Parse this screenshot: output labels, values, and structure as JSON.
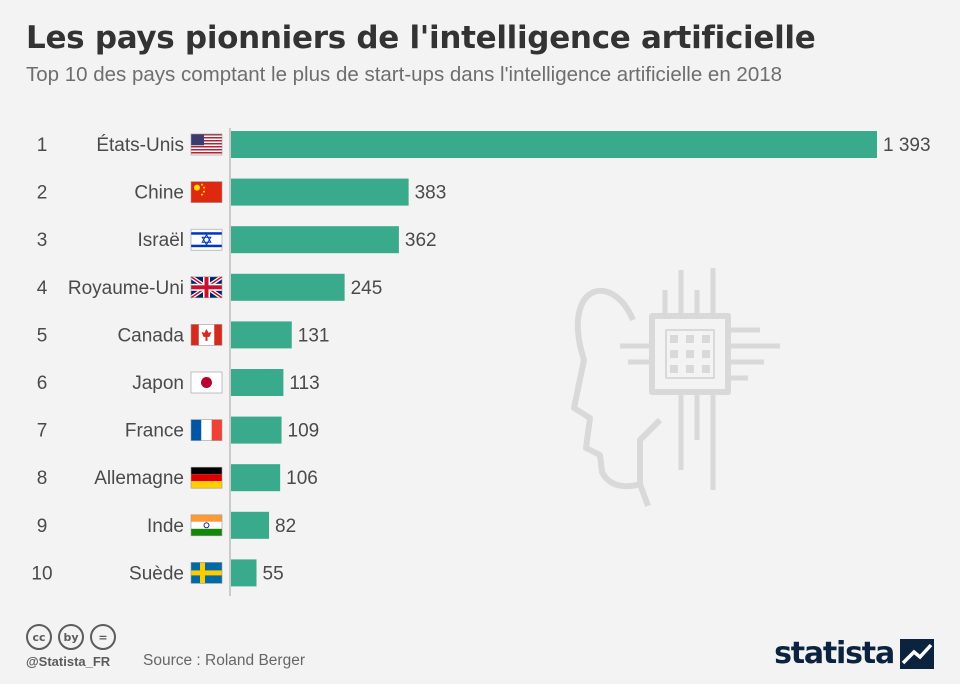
{
  "title": "Les pays pionniers de l'intelligence artificielle",
  "subtitle": "Top 10 des pays comptant le plus de start-ups dans l'intelligence artificielle en 2018",
  "chart_data": {
    "type": "bar",
    "orientation": "horizontal",
    "title": "Les pays pionniers de l'intelligence artificielle",
    "subtitle": "Top 10 des pays comptant le plus de start-ups dans l'intelligence artificielle en 2018",
    "ranks": [
      "1",
      "2",
      "3",
      "4",
      "5",
      "6",
      "7",
      "8",
      "9",
      "10"
    ],
    "categories": [
      "États-Unis",
      "Chine",
      "Israël",
      "Royaume-Uni",
      "Canada",
      "Japon",
      "France",
      "Allemagne",
      "Inde",
      "Suède"
    ],
    "values": [
      1393,
      383,
      362,
      245,
      131,
      113,
      109,
      106,
      82,
      55
    ],
    "value_labels": [
      "1 393",
      "383",
      "362",
      "245",
      "131",
      "113",
      "109",
      "106",
      "82",
      "55"
    ],
    "flags": [
      "us-flag-icon",
      "china-flag-icon",
      "israel-flag-icon",
      "uk-flag-icon",
      "canada-flag-icon",
      "japan-flag-icon",
      "france-flag-icon",
      "germany-flag-icon",
      "india-flag-icon",
      "sweden-flag-icon"
    ],
    "xlim": [
      0,
      1393
    ],
    "xlabel": "",
    "ylabel": "",
    "grid": false,
    "bar_color": "#3aaa8d"
  },
  "footer": {
    "handle": "@Statista_FR",
    "source": "Source : Roland Berger",
    "brand": "statista",
    "cc_icons": [
      "cc",
      "by",
      "="
    ]
  },
  "colors": {
    "background": "#f3f3f3",
    "bar": "#3aaa8d",
    "title": "#333333",
    "text": "#4a4a4a",
    "brand": "#0c2340"
  },
  "decoration": "ai-head-chip-icon"
}
